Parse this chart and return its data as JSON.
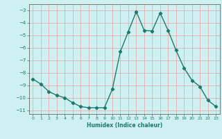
{
  "x": [
    0,
    1,
    2,
    3,
    4,
    5,
    6,
    7,
    8,
    9,
    10,
    11,
    12,
    13,
    14,
    15,
    16,
    17,
    18,
    19,
    20,
    21,
    22,
    23
  ],
  "y": [
    -8.5,
    -8.9,
    -9.5,
    -9.8,
    -10.0,
    -10.4,
    -10.7,
    -10.8,
    -10.8,
    -10.8,
    -9.3,
    -6.3,
    -4.7,
    -3.1,
    -4.6,
    -4.65,
    -3.2,
    -4.6,
    -6.2,
    -7.6,
    -8.6,
    -9.1,
    -10.2,
    -10.7
  ],
  "title": "",
  "xlabel": "Humidex (Indice chaleur)",
  "ylabel": "",
  "xlim": [
    -0.5,
    23.5
  ],
  "ylim": [
    -11.3,
    -2.5
  ],
  "yticks": [
    -3,
    -4,
    -5,
    -6,
    -7,
    -8,
    -9,
    -10,
    -11
  ],
  "xticks": [
    0,
    1,
    2,
    3,
    4,
    5,
    6,
    7,
    8,
    9,
    10,
    11,
    12,
    13,
    14,
    15,
    16,
    17,
    18,
    19,
    20,
    21,
    22,
    23
  ],
  "line_color": "#1a7a6e",
  "marker": "D",
  "marker_size": 2.2,
  "bg_color": "#cff0f0",
  "grid_color": "#e8a0a0"
}
